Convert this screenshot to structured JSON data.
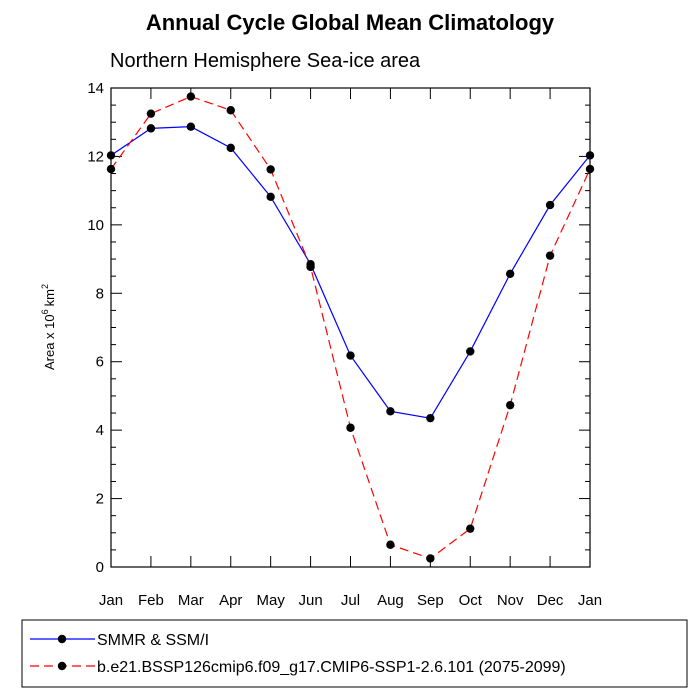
{
  "chart_data": {
    "type": "line",
    "title": "Annual Cycle Global Mean Climatology",
    "subtitle": "Northern Hemisphere Sea-ice area",
    "ylabel": {
      "prefix": "Area x 10",
      "exponent": "6",
      "unit": "km",
      "unit_exponent": "2"
    },
    "xlabel": "",
    "categories": [
      "Jan",
      "Feb",
      "Mar",
      "Apr",
      "May",
      "Jun",
      "Jul",
      "Aug",
      "Sep",
      "Oct",
      "Nov",
      "Dec",
      "Jan"
    ],
    "ylim": [
      0,
      14
    ],
    "yticks": [
      0,
      2,
      4,
      6,
      8,
      10,
      12,
      14
    ],
    "grid": false,
    "legend_placement": "bottom",
    "series": [
      {
        "name": "SMMR & SSM/I",
        "color": "#0000ff",
        "dash": "solid",
        "values": [
          12.03,
          12.82,
          12.87,
          12.25,
          10.82,
          8.85,
          6.18,
          4.55,
          4.35,
          6.3,
          8.57,
          10.58,
          12.03
        ]
      },
      {
        "name": "b.e21.BSSP126cmip6.f09_g17.CMIP6-SSP1-2.6.101 (2075-2099)",
        "color": "#ff0000",
        "dash": "dashed",
        "values": [
          11.63,
          13.25,
          13.75,
          13.35,
          11.62,
          8.77,
          4.07,
          0.65,
          0.25,
          1.12,
          4.73,
          9.1,
          11.63
        ]
      }
    ]
  }
}
